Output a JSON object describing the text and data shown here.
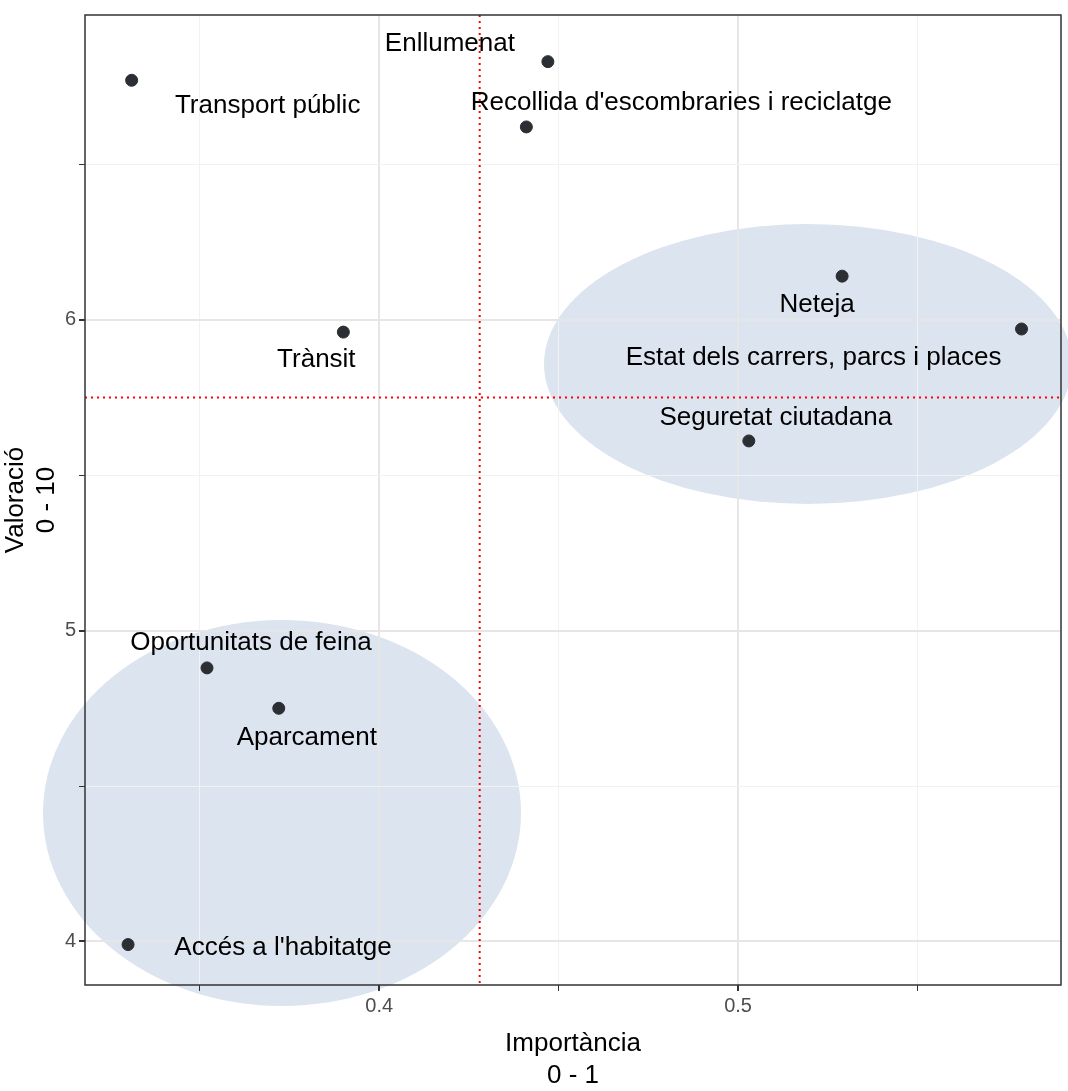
{
  "chart_data": {
    "type": "scatter",
    "xlabel": "Importància\n0 - 1",
    "ylabel": "Valoració\n0 - 10",
    "xlim": [
      0.318,
      0.59
    ],
    "ylim": [
      3.86,
      6.98
    ],
    "xticks": [
      {
        "value": 0.35,
        "label": null
      },
      0.4,
      {
        "value": 0.45,
        "label": null
      },
      0.5,
      {
        "value": 0.55,
        "label": null
      }
    ],
    "yticks": [
      4,
      {
        "value": 4.5,
        "label": null
      },
      5,
      {
        "value": 5.5,
        "label": null
      },
      6,
      {
        "value": 6.5,
        "label": null
      }
    ],
    "grid": true,
    "legend": false,
    "marker": "circle",
    "series": [
      {
        "color": "#2b2f33",
        "x": [
          0.447,
          0.331,
          0.441,
          0.529,
          0.579,
          0.39,
          0.503,
          0.352,
          0.372,
          0.33
        ],
        "values": [
          6.83,
          6.77,
          6.62,
          6.14,
          5.97,
          5.96,
          5.61,
          4.88,
          4.75,
          3.99
        ]
      }
    ],
    "ref_lines": [
      {
        "axis": "x",
        "value": 0.428,
        "color": "#ff0000",
        "line_style": "dotted"
      },
      {
        "axis": "y",
        "value": 5.75,
        "color": "#ff0000",
        "line_style": "dotted"
      }
    ],
    "annotations": [
      {
        "text": "Enllumenat",
        "x": 0.447,
        "y": 6.83
      },
      {
        "text": "Transport públic",
        "x": 0.331,
        "y": 6.77
      },
      {
        "text": "Recollida d'escombraries i reciclatge",
        "x": 0.441,
        "y": 6.62
      },
      {
        "text": "Neteja",
        "x": 0.529,
        "y": 6.14
      },
      {
        "text": "Estat dels carrers, parcs i places",
        "x": 0.579,
        "y": 5.97
      },
      {
        "text": "Trànsit",
        "x": 0.39,
        "y": 5.96
      },
      {
        "text": "Seguretat ciutadana",
        "x": 0.503,
        "y": 5.61
      },
      {
        "text": "Oportunitats de feina",
        "x": 0.352,
        "y": 4.88
      },
      {
        "text": "Aparcament",
        "x": 0.372,
        "y": 4.75
      },
      {
        "text": "Accés a l'habitatge",
        "x": 0.33,
        "y": 3.99
      }
    ]
  }
}
